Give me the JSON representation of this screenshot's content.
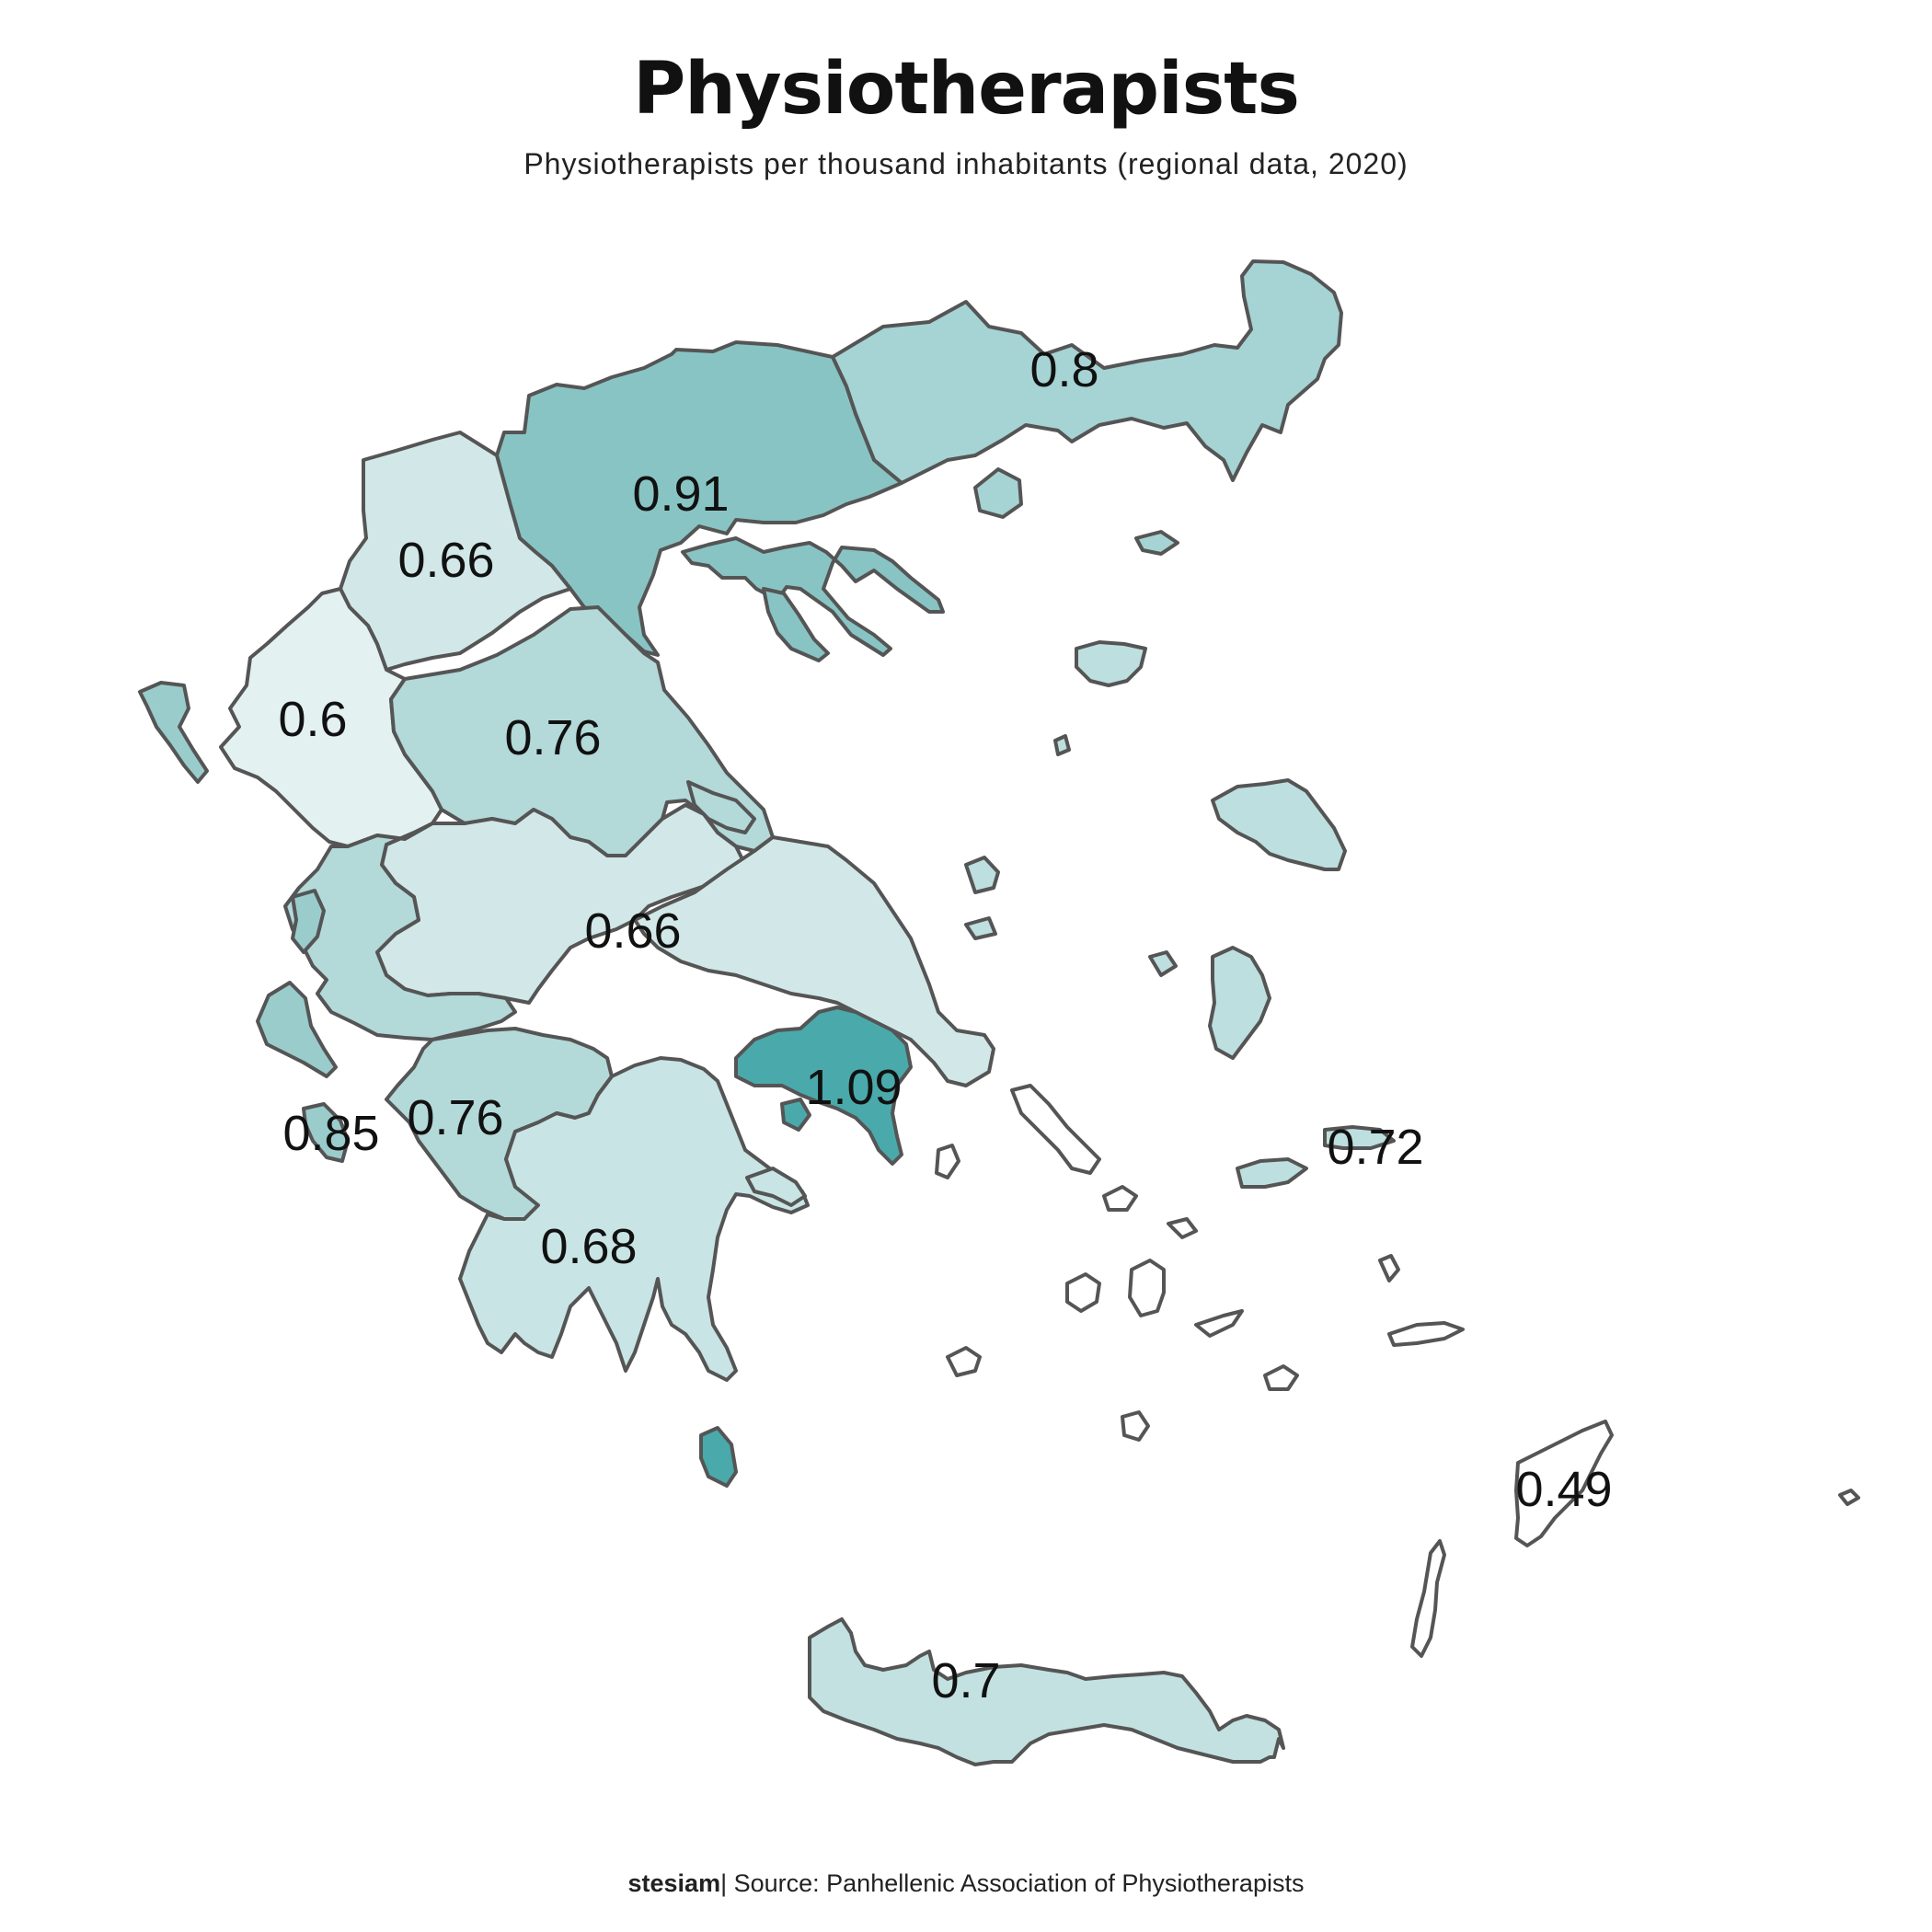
{
  "title": "Physiotherapists",
  "subtitle": "Physiotherapists per thousand inhabitants (regional data, 2020)",
  "footer": {
    "author": "stesiam",
    "source": "| Source: Panhellenic Association of Physiotherapists"
  },
  "color_scale": {
    "low": "#e3f1f1",
    "high": "#4aa9ab",
    "border": "#555555"
  },
  "chart_data": {
    "type": "choropleth",
    "regions": [
      {
        "region": "Eastern Macedonia and Thrace",
        "value": 0.8,
        "color": "#a6d3d3",
        "label": "0.8"
      },
      {
        "region": "Central Macedonia",
        "value": 0.91,
        "color": "#89c4c4",
        "label": "0.91"
      },
      {
        "region": "Western Macedonia",
        "value": 0.66,
        "color": "#d2e8e8",
        "label": "0.66"
      },
      {
        "region": "Epirus",
        "value": 0.6,
        "color": "#e3f1f1",
        "label": "0.6"
      },
      {
        "region": "Thessaly",
        "value": 0.76,
        "color": "#b3d9d9",
        "label": "0.76"
      },
      {
        "region": "Central Greece",
        "value": 0.66,
        "color": "#d2e8e8",
        "label": "0.66"
      },
      {
        "region": "Attica",
        "value": 1.09,
        "color": "#4aa9ab",
        "label": "1.09"
      },
      {
        "region": "Western Greece",
        "value": 0.76,
        "color": "#b3d9d9",
        "label": "0.76"
      },
      {
        "region": "Ionian Islands",
        "value": 0.85,
        "color": "#9acccc",
        "label": "0.85"
      },
      {
        "region": "Peloponnese",
        "value": 0.68,
        "color": "#c9e4e4",
        "label": "0.68"
      },
      {
        "region": "North Aegean",
        "value": 0.72,
        "color": "#bedfdf",
        "label": "0.72"
      },
      {
        "region": "South Aegean",
        "value": 0.49,
        "color": "#ffffff",
        "label": "0.49"
      },
      {
        "region": "Crete",
        "value": 0.7,
        "color": "#c3e1e1",
        "label": "0.7"
      }
    ]
  }
}
